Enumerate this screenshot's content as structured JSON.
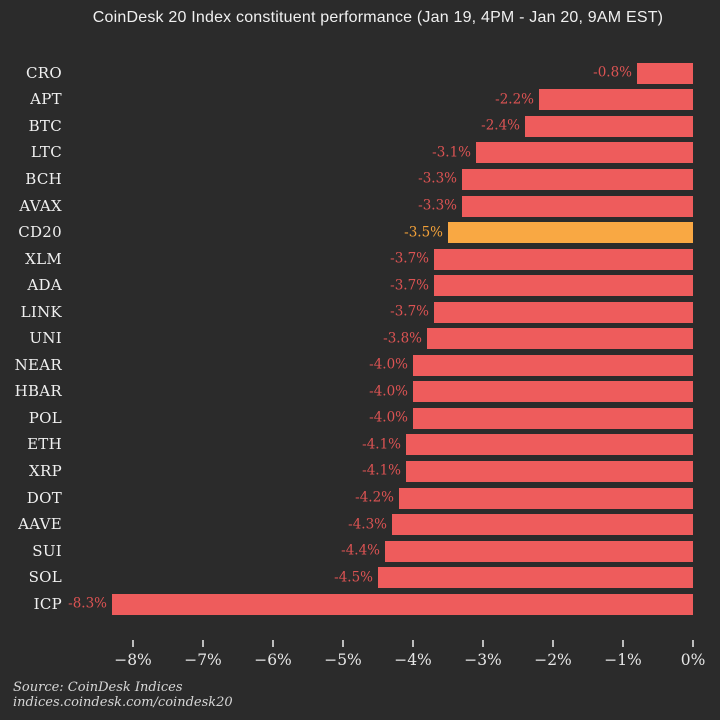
{
  "title": "CoinDesk 20 Index constituent performance (Jan 19, 4PM - Jan 20, 9AM EST)",
  "footer": {
    "source": "Source: CoinDesk Indices",
    "url": "indices.coindesk.com/coindesk20"
  },
  "colors": {
    "background": "#2b2b2b",
    "bar": "#ee5c5c",
    "bar_highlight": "#f9a843",
    "value_label": "#dc5353",
    "value_label_highlight": "#f3a139",
    "ticker_label": "#f0f0f0",
    "axis_label": "#e6e6e6",
    "title_text": "#f0f0f0",
    "footer_text": "#d6d6d6",
    "tick_mark": "#bdbdbd"
  },
  "chart_data": {
    "type": "bar",
    "orientation": "horizontal",
    "title": "CoinDesk 20 Index constituent performance (Jan 19, 4PM - Jan 20, 9AM EST)",
    "xlabel": "",
    "ylabel": "",
    "grid": false,
    "legend": false,
    "xlim": [
      -9.0,
      0
    ],
    "x_tick_values": [
      -8,
      -7,
      -6,
      -5,
      -4,
      -3,
      -2,
      -1,
      0
    ],
    "x_tick_labels": [
      "−8%",
      "−7%",
      "−6%",
      "−5%",
      "−4%",
      "−3%",
      "−2%",
      "−1%",
      "0%"
    ],
    "highlight_category": "CD20",
    "categories": [
      "CRO",
      "APT",
      "BTC",
      "LTC",
      "BCH",
      "AVAX",
      "CD20",
      "XLM",
      "ADA",
      "LINK",
      "UNI",
      "NEAR",
      "HBAR",
      "POL",
      "ETH",
      "XRP",
      "DOT",
      "AAVE",
      "SUI",
      "SOL",
      "ICP"
    ],
    "values": [
      -0.8,
      -2.2,
      -2.4,
      -3.1,
      -3.3,
      -3.3,
      -3.5,
      -3.7,
      -3.7,
      -3.7,
      -3.8,
      -4.0,
      -4.0,
      -4.0,
      -4.1,
      -4.1,
      -4.2,
      -4.3,
      -4.4,
      -4.5,
      -8.3
    ],
    "value_labels": [
      "-0.8%",
      "-2.2%",
      "-2.4%",
      "-3.1%",
      "-3.3%",
      "-3.3%",
      "-3.5%",
      "-3.7%",
      "-3.7%",
      "-3.7%",
      "-3.8%",
      "-4.0%",
      "-4.0%",
      "-4.0%",
      "-4.1%",
      "-4.1%",
      "-4.2%",
      "-4.3%",
      "-4.4%",
      "-4.5%",
      "-8.3%"
    ]
  }
}
